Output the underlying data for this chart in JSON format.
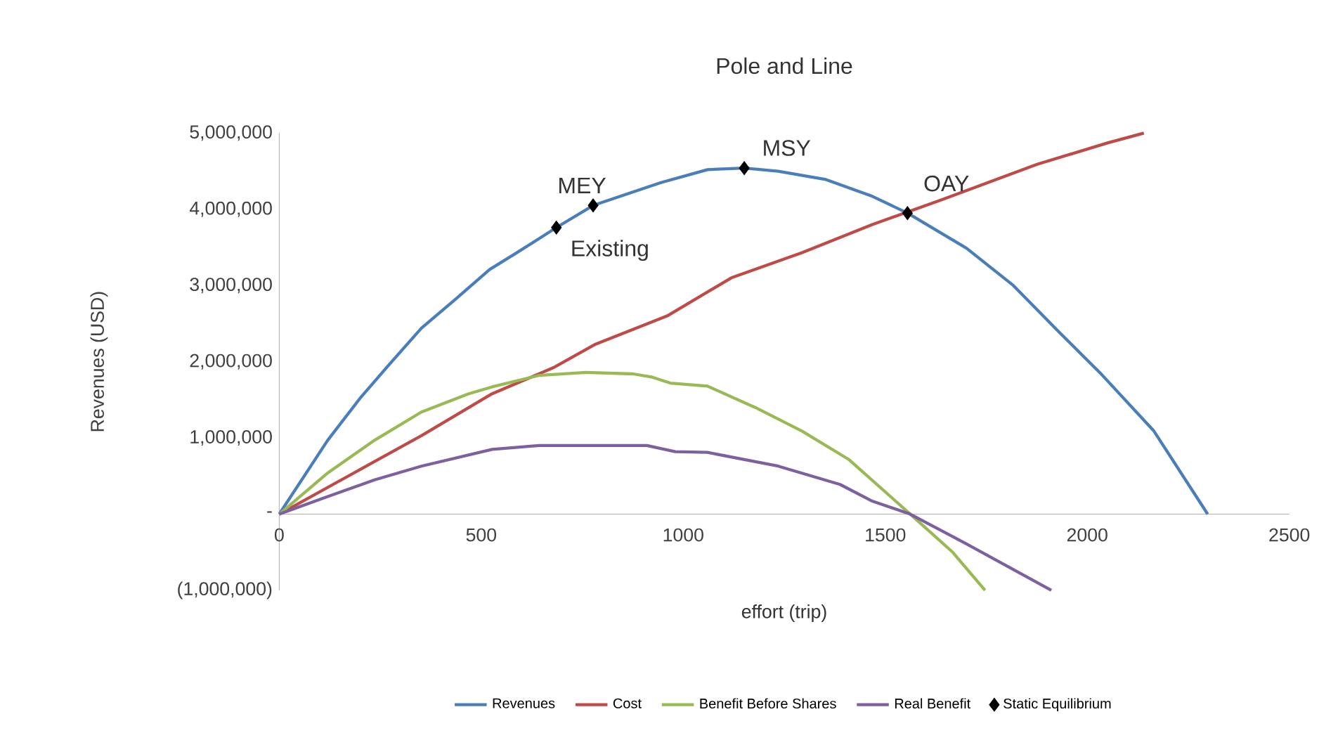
{
  "chart_data": {
    "type": "line",
    "title": "Pole and Line",
    "xlabel": "effort (trip)",
    "ylabel": "Revenues (USD)",
    "xlim": [
      0,
      2500
    ],
    "xticks": [
      0,
      500,
      1000,
      1500,
      2000,
      2500
    ],
    "ylim": [
      -1000000,
      5000000
    ],
    "yticks": [
      {
        "value": -1000000,
        "label": "(1,000,000)"
      },
      {
        "value": 0,
        "label": "-"
      },
      {
        "value": 1000000,
        "label": "1,000,000"
      },
      {
        "value": 2000000,
        "label": "2,000,000"
      },
      {
        "value": 3000000,
        "label": "3,000,000"
      },
      {
        "value": 4000000,
        "label": "4,000,000"
      },
      {
        "value": 5000000,
        "label": "5,000,000"
      }
    ],
    "legend": "bottom",
    "grid": false,
    "series": [
      {
        "name": "Revenues",
        "color": "#4a7ebb",
        "marker": "none",
        "x": [
          0,
          120,
          200,
          270,
          352,
          434,
          521,
          585,
          686,
          777,
          945,
          1060,
          1151,
          1235,
          1353,
          1468,
          1555,
          1701,
          1817,
          1932,
          2036,
          2165,
          2298
        ],
        "values": [
          0,
          970000,
          1520000,
          1950000,
          2440000,
          2810000,
          3210000,
          3420000,
          3760000,
          4050000,
          4350000,
          4520000,
          4540000,
          4500000,
          4390000,
          4170000,
          3950000,
          3490000,
          3000000,
          2380000,
          1830000,
          1090000,
          0
        ]
      },
      {
        "name": "Cost",
        "color": "#be4b48",
        "marker": "none",
        "x": [
          0,
          236,
          352,
          527,
          678,
          783,
          960,
          1119,
          1294,
          1468,
          1642,
          1876,
          2050,
          2140
        ],
        "values": [
          0,
          690000,
          1030000,
          1580000,
          1920000,
          2230000,
          2600000,
          3100000,
          3430000,
          3800000,
          4130000,
          4590000,
          4870000,
          5000000
        ]
      },
      {
        "name": "Benefit Before Shares",
        "color": "#98b954",
        "marker": "none",
        "x": [
          0,
          120,
          236,
          352,
          469,
          527,
          643,
          759,
          876,
          921,
          968,
          1060,
          1178,
          1294,
          1409,
          1562,
          1667,
          1747
        ],
        "values": [
          0,
          540000,
          970000,
          1340000,
          1580000,
          1670000,
          1820000,
          1860000,
          1840000,
          1800000,
          1720000,
          1680000,
          1400000,
          1090000,
          720000,
          0,
          -500000,
          -1000000
        ]
      },
      {
        "name": "Real Benefit",
        "color": "#7d60a0",
        "marker": "none",
        "x": [
          0,
          120,
          236,
          352,
          527,
          643,
          910,
          980,
          1060,
          1235,
          1388,
          1468,
          1562,
          1701,
          1911
        ],
        "values": [
          0,
          230000,
          450000,
          630000,
          850000,
          900000,
          900000,
          820000,
          810000,
          630000,
          390000,
          170000,
          0,
          -390000,
          -1000000
        ]
      },
      {
        "name": "Static Equilibrium",
        "type": "scatter",
        "color": "#000000",
        "marker": "diamond",
        "x": [
          686,
          777,
          1151,
          1555
        ],
        "values": [
          3760000,
          4050000,
          4540000,
          3950000
        ]
      }
    ],
    "annotations": [
      {
        "text": "MEY",
        "x": 777,
        "y": 4050000
      },
      {
        "text": "Existing",
        "x": 686,
        "y": 3760000
      },
      {
        "text": "MSY",
        "x": 1151,
        "y": 4540000
      },
      {
        "text": "OAY",
        "x": 1555,
        "y": 3950000
      }
    ]
  }
}
